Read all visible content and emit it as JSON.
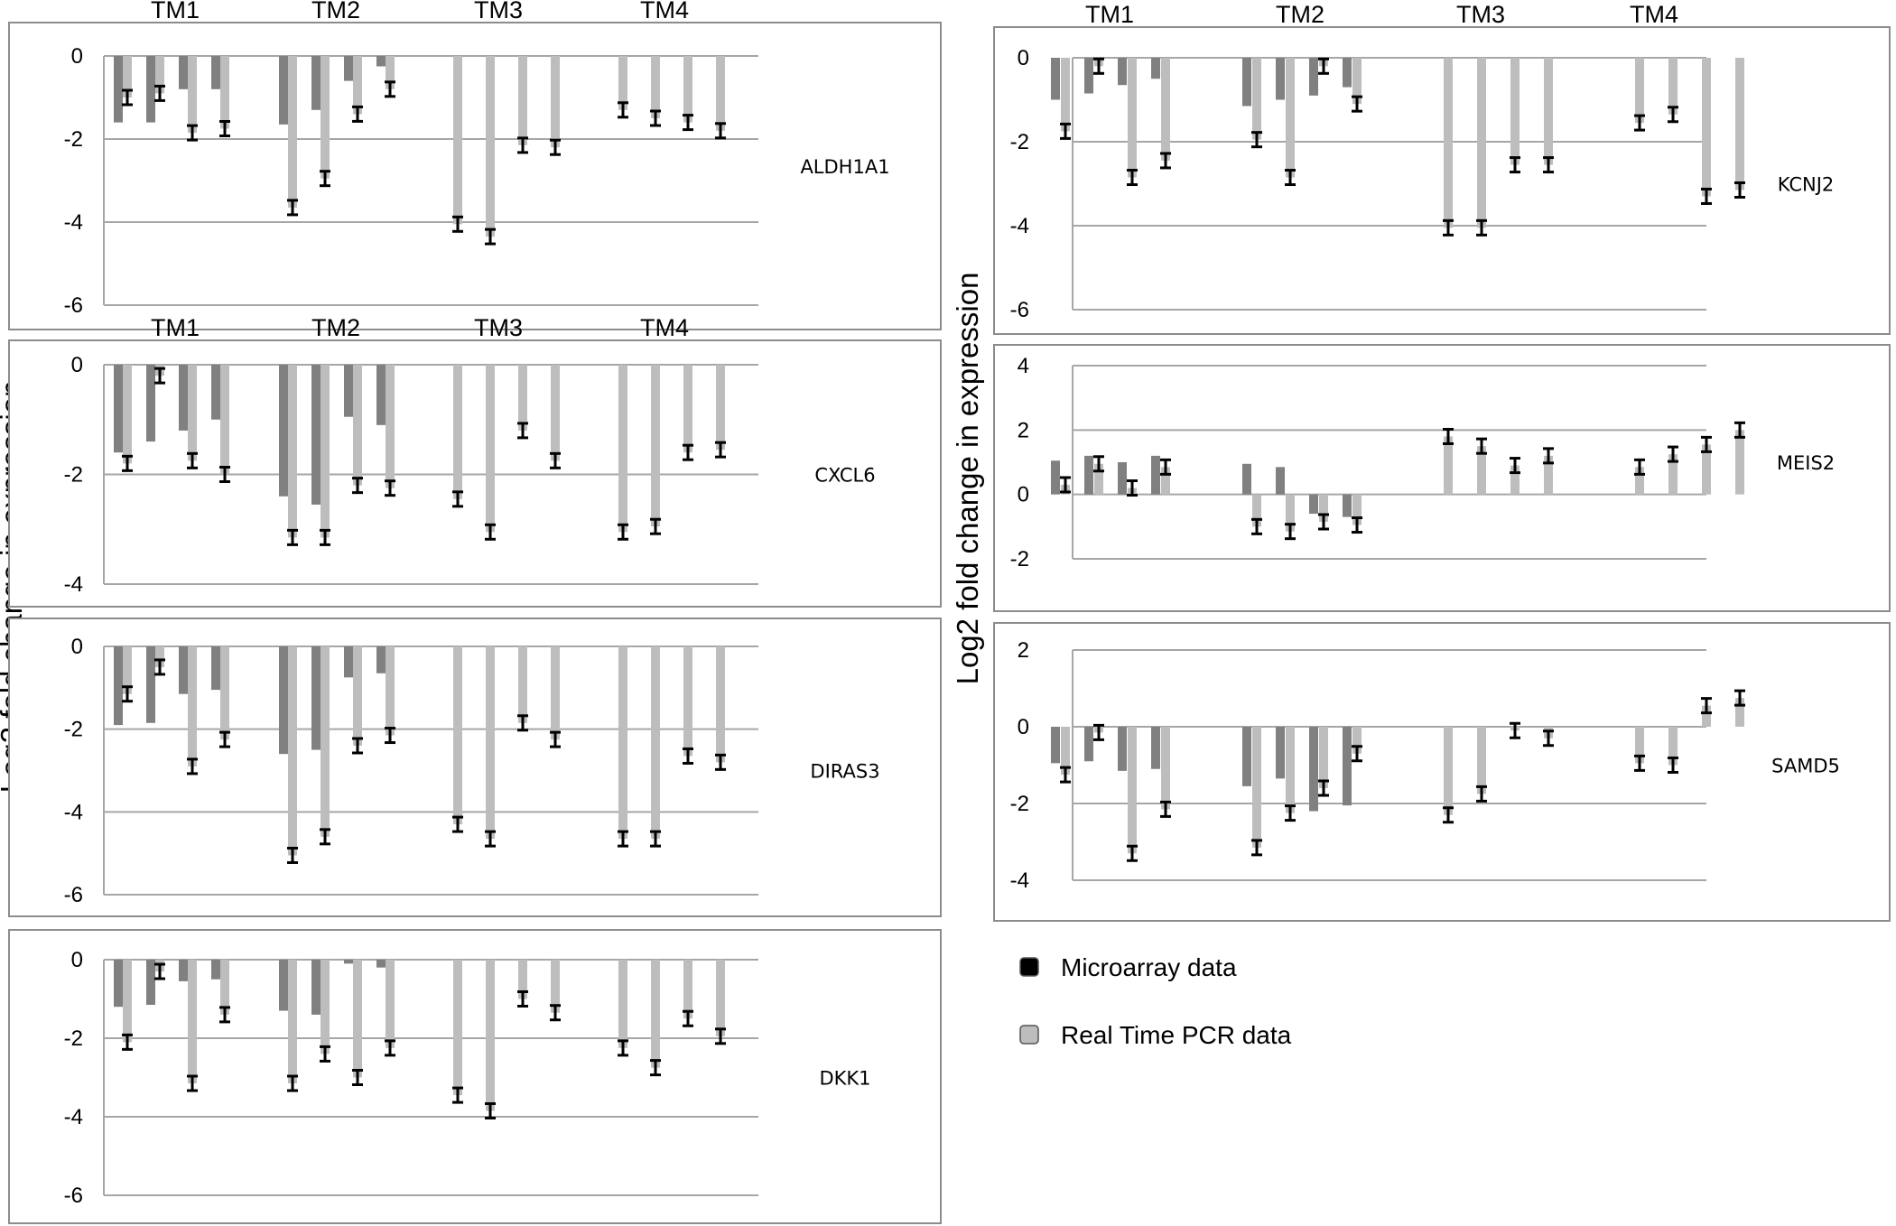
{
  "ylabel": "Log2 fold change in expression",
  "colors": {
    "microarray": "#808080",
    "pcr": "#bdbdbd",
    "legend_microarray": "#000000",
    "legend_pcr": "#bdbdbd"
  },
  "legend": [
    {
      "label": "Microarray data",
      "swatch": "microarray"
    },
    {
      "label": "Real Time PCR data",
      "swatch": "pcr"
    }
  ],
  "chart_data": [
    {
      "type": "bar",
      "gene": "ALDH1A1",
      "column": "left",
      "group_labels": [
        "TM1",
        "TM2",
        "TM3",
        "TM4"
      ],
      "ylim": [
        -6,
        0
      ],
      "yticks": [
        0,
        -2,
        -4,
        -6
      ],
      "grid": true,
      "groups": [
        [
          [
            -1.6,
            -1.0
          ],
          [
            -1.6,
            -0.9
          ],
          [
            -0.8,
            -1.85
          ],
          [
            -0.8,
            -1.75
          ]
        ],
        [
          [
            -1.65,
            -3.65
          ],
          [
            -1.3,
            -2.95
          ],
          [
            -0.6,
            -1.4
          ],
          [
            -0.25,
            -0.8
          ]
        ],
        [
          [
            null,
            -4.05
          ],
          [
            null,
            -4.35
          ],
          [
            null,
            -2.15
          ],
          [
            null,
            -2.2
          ]
        ],
        [
          [
            null,
            -1.3
          ],
          [
            null,
            -1.5
          ],
          [
            null,
            -1.6
          ],
          [
            null,
            -1.8
          ]
        ]
      ]
    },
    {
      "type": "bar",
      "gene": "CXCL6",
      "column": "left",
      "group_labels": [
        "TM1",
        "TM2",
        "TM3",
        "TM4"
      ],
      "ylim": [
        -4,
        0
      ],
      "yticks": [
        0,
        -2,
        -4
      ],
      "grid": true,
      "groups": [
        [
          [
            -1.6,
            -1.8
          ],
          [
            -1.4,
            -0.2
          ],
          [
            -1.2,
            -1.75
          ],
          [
            -1.0,
            -2.0
          ]
        ],
        [
          [
            -2.4,
            -3.15
          ],
          [
            -2.55,
            -3.15
          ],
          [
            -0.95,
            -2.2
          ],
          [
            -1.1,
            -2.25
          ]
        ],
        [
          [
            null,
            -2.45
          ],
          [
            null,
            -3.05
          ],
          [
            null,
            -1.2
          ],
          [
            null,
            -1.75
          ]
        ],
        [
          [
            null,
            -3.05
          ],
          [
            null,
            -2.95
          ],
          [
            null,
            -1.6
          ],
          [
            null,
            -1.55
          ]
        ]
      ]
    },
    {
      "type": "bar",
      "gene": "DIRAS3",
      "column": "left",
      "group_labels": [],
      "ylim": [
        -6,
        0
      ],
      "yticks": [
        0,
        -2,
        -4,
        -6
      ],
      "grid": true,
      "groups": [
        [
          [
            -1.9,
            -1.15
          ],
          [
            -1.85,
            -0.5
          ],
          [
            -1.15,
            -2.9
          ],
          [
            -1.05,
            -2.25
          ]
        ],
        [
          [
            -2.6,
            -5.05
          ],
          [
            -2.5,
            -4.6
          ],
          [
            -0.75,
            -2.4
          ],
          [
            -0.65,
            -2.15
          ]
        ],
        [
          [
            null,
            -4.3
          ],
          [
            null,
            -4.65
          ],
          [
            null,
            -1.85
          ],
          [
            null,
            -2.25
          ]
        ],
        [
          [
            null,
            -4.65
          ],
          [
            null,
            -4.65
          ],
          [
            null,
            -2.65
          ],
          [
            null,
            -2.8
          ]
        ]
      ]
    },
    {
      "type": "bar",
      "gene": "DKK1",
      "column": "left",
      "group_labels": [],
      "ylim": [
        -6,
        0
      ],
      "yticks": [
        0,
        -2,
        -4,
        -6
      ],
      "grid": true,
      "groups": [
        [
          [
            -1.2,
            -2.1
          ],
          [
            -1.15,
            -0.3
          ],
          [
            -0.55,
            -3.15
          ],
          [
            -0.5,
            -1.4
          ]
        ],
        [
          [
            -1.3,
            -3.15
          ],
          [
            -1.4,
            -2.4
          ],
          [
            -0.1,
            -3.0
          ],
          [
            -0.2,
            -2.25
          ]
        ],
        [
          [
            null,
            -3.45
          ],
          [
            null,
            -3.85
          ],
          [
            null,
            -1.0
          ],
          [
            null,
            -1.35
          ]
        ],
        [
          [
            null,
            -2.25
          ],
          [
            null,
            -2.75
          ],
          [
            null,
            -1.5
          ],
          [
            null,
            -1.95
          ]
        ]
      ]
    },
    {
      "type": "bar",
      "gene": "KCNJ2",
      "column": "right",
      "group_labels": [
        "TM1",
        "TM2",
        "TM3",
        "TM4"
      ],
      "ylim": [
        -6,
        0
      ],
      "yticks": [
        0,
        -2,
        -4,
        -6
      ],
      "grid": true,
      "groups": [
        [
          [
            -1.0,
            -1.75
          ],
          [
            -0.85,
            -0.2
          ],
          [
            -0.65,
            -2.85
          ],
          [
            -0.5,
            -2.45
          ]
        ],
        [
          [
            -1.15,
            -1.95
          ],
          [
            -1.0,
            -2.85
          ],
          [
            -0.9,
            -0.2
          ],
          [
            -0.7,
            -1.1
          ]
        ],
        [
          [
            null,
            -4.05
          ],
          [
            null,
            -4.05
          ],
          [
            null,
            -2.55
          ],
          [
            null,
            -2.55
          ]
        ],
        [
          [
            null,
            -1.55
          ],
          [
            null,
            -1.35
          ],
          [
            null,
            -3.3
          ],
          [
            null,
            -3.15
          ]
        ]
      ]
    },
    {
      "type": "bar",
      "gene": "MEIS2",
      "column": "right",
      "group_labels": [],
      "ylim": [
        -2,
        4
      ],
      "yticks": [
        4,
        2,
        0,
        -2
      ],
      "grid": true,
      "groups": [
        [
          [
            1.05,
            0.3
          ],
          [
            1.2,
            0.95
          ],
          [
            1.0,
            0.2
          ],
          [
            1.2,
            0.85
          ]
        ],
        [
          [
            0.95,
            -1.0
          ],
          [
            0.85,
            -1.15
          ],
          [
            -0.6,
            -0.85
          ],
          [
            -0.7,
            -0.95
          ]
        ],
        [
          [
            null,
            1.8
          ],
          [
            null,
            1.5
          ],
          [
            null,
            0.9
          ],
          [
            null,
            1.2
          ]
        ],
        [
          [
            null,
            0.85
          ],
          [
            null,
            1.25
          ],
          [
            null,
            1.55
          ],
          [
            null,
            2.0
          ]
        ]
      ]
    },
    {
      "type": "bar",
      "gene": "SAMD5",
      "column": "right",
      "group_labels": [],
      "ylim": [
        -4,
        2
      ],
      "yticks": [
        2,
        0,
        -2,
        -4
      ],
      "grid": true,
      "groups": [
        [
          [
            -0.95,
            -1.25
          ],
          [
            -0.9,
            -0.15
          ],
          [
            -1.15,
            -3.3
          ],
          [
            -1.1,
            -2.15
          ]
        ],
        [
          [
            -1.55,
            -3.15
          ],
          [
            -1.35,
            -2.25
          ],
          [
            -2.2,
            -1.6
          ],
          [
            -2.05,
            -0.7
          ]
        ],
        [
          [
            null,
            -2.3
          ],
          [
            null,
            -1.75
          ],
          [
            null,
            -0.1
          ],
          [
            null,
            -0.3
          ]
        ],
        [
          [
            null,
            -0.95
          ],
          [
            null,
            -1.0
          ],
          [
            null,
            0.55
          ],
          [
            null,
            0.75
          ]
        ]
      ]
    }
  ]
}
